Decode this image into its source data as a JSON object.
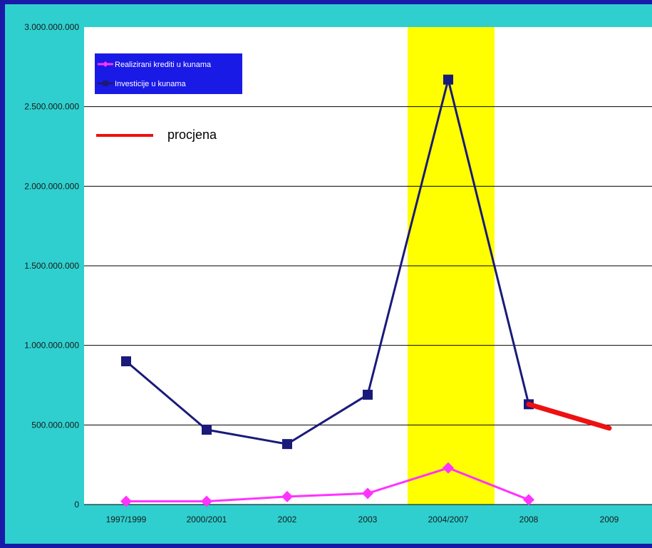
{
  "colors": {
    "background": "#2fcfcf",
    "plot_area": "#ffffff",
    "highlight": "#ffff00",
    "legend_box": "#1a1ae6",
    "series_credits": "#ff33ff",
    "series_investments": "#1a1a7a",
    "series_estimate": "#ee1111",
    "grid": "#000000"
  },
  "chart_data": {
    "type": "line",
    "categories": [
      "1997/1999",
      "2000/2001",
      "2002",
      "2003",
      "2004/2007",
      "2008",
      "2009"
    ],
    "ylim": [
      0,
      3000000000
    ],
    "y_ticks": [
      0,
      500000000,
      1000000000,
      1500000000,
      2000000000,
      2500000000,
      3000000000
    ],
    "y_tick_labels": [
      "0",
      "500.000.000",
      "1.000.000.000",
      "1.500.000.000",
      "2.000.000.000",
      "2.500.000.000",
      "3.000.000.000"
    ],
    "grid": "horizontal",
    "highlight_category": "2004/2007",
    "legend_position": "top-left",
    "series": [
      {
        "name": "Realizirani krediti u kunama",
        "color": "#ff33ff",
        "marker": "diamond",
        "values": [
          20000000,
          20000000,
          50000000,
          70000000,
          230000000,
          30000000,
          null
        ]
      },
      {
        "name": "Investicije u kunama",
        "color": "#1a1a7a",
        "marker": "square",
        "values": [
          900000000,
          470000000,
          380000000,
          690000000,
          2670000000,
          630000000,
          null
        ]
      },
      {
        "name": "procjena",
        "color": "#ee1111",
        "marker": "none",
        "values": [
          null,
          null,
          null,
          null,
          null,
          630000000,
          480000000
        ]
      }
    ],
    "legend": {
      "entries": [
        "Realizirani krediti u kunama",
        "Investicije u kunama"
      ]
    },
    "annotation": "procjena"
  }
}
